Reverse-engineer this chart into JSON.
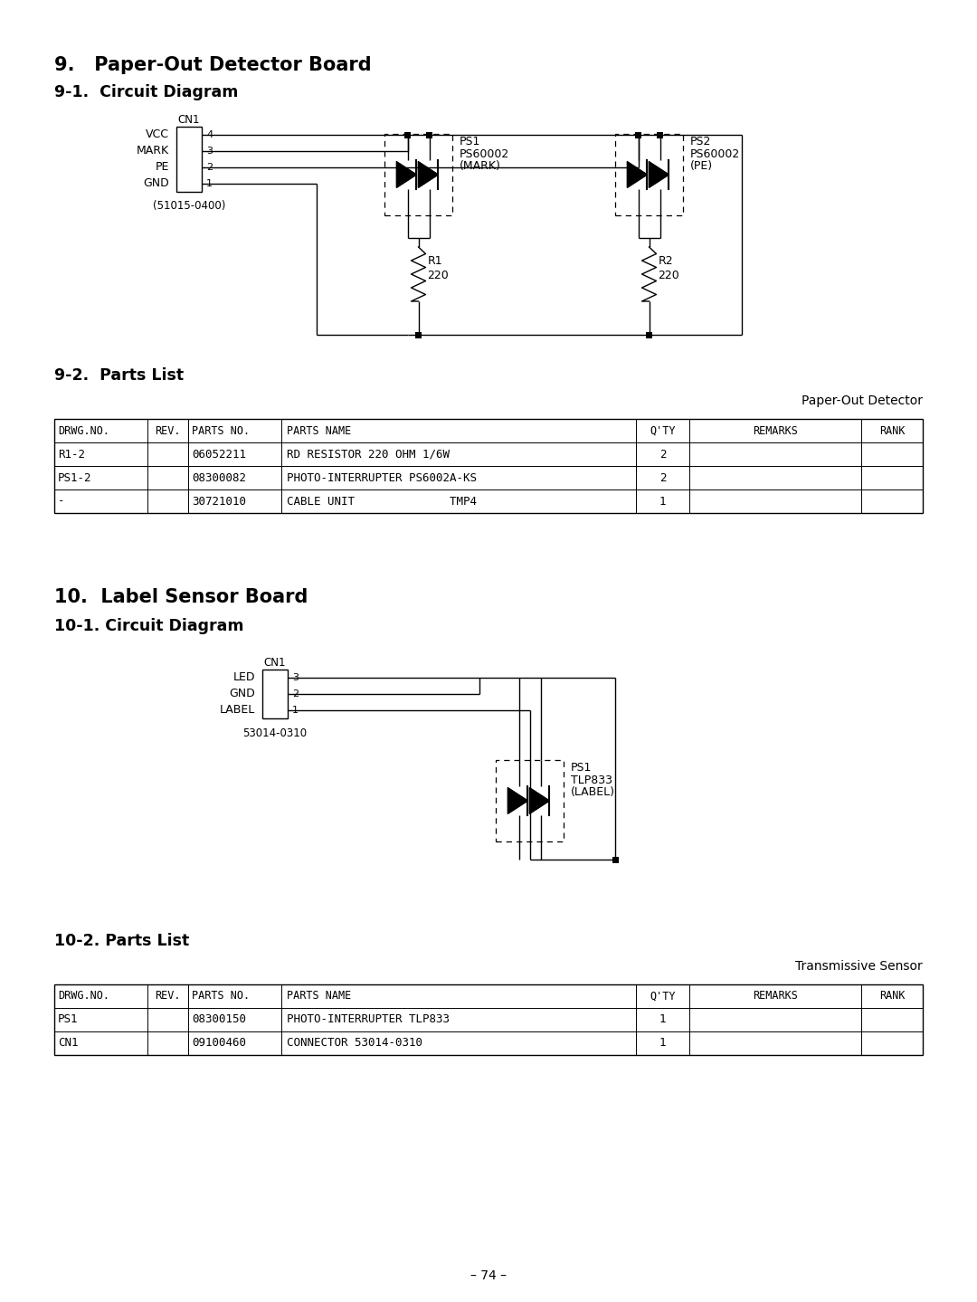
{
  "bg_color": "#ffffff",
  "page_number": "– 74 –",
  "section9_title": "9.   Paper-Out Detector Board",
  "section9_1_title": "9-1.  Circuit Diagram",
  "section9_2_title": "9-2.  Parts List",
  "section10_title": "10.  Label Sensor Board",
  "section10_1_title": "10-1. Circuit Diagram",
  "section10_2_title": "10-2. Parts List",
  "paper_out_detector_label": "Paper-Out Detector",
  "transmissive_sensor_label": "Transmissive Sensor",
  "table1_headers": [
    "DRWG.NO.",
    "REV.",
    "PARTS NO.",
    "PARTS NAME",
    "Q'TY",
    "REMARKS",
    "RANK"
  ],
  "table1_col_widths": [
    0.95,
    0.42,
    0.95,
    3.6,
    0.55,
    1.75,
    0.63
  ],
  "table1_rows": [
    [
      "R1-2",
      "",
      "06052211",
      "RD RESISTOR 220 OHM 1/6W",
      "2",
      "",
      ""
    ],
    [
      "PS1-2",
      "",
      "08300082",
      "PHOTO-INTERRUPTER PS6002A-KS",
      "2",
      "",
      ""
    ],
    [
      "-",
      "",
      "30721010",
      "CABLE UNIT              TMP4",
      "1",
      "",
      ""
    ]
  ],
  "table2_headers": [
    "DRWG.NO.",
    "REV.",
    "PARTS NO.",
    "PARTS NAME",
    "Q'TY",
    "REMARKS",
    "RANK"
  ],
  "table2_col_widths": [
    0.95,
    0.42,
    0.95,
    3.6,
    0.55,
    1.75,
    0.63
  ],
  "table2_rows": [
    [
      "PS1",
      "",
      "08300150",
      "PHOTO-INTERRUPTER TLP833",
      "1",
      "",
      ""
    ],
    [
      "CN1",
      "",
      "09100460",
      "CONNECTOR 53014-0310",
      "1",
      "",
      ""
    ]
  ]
}
